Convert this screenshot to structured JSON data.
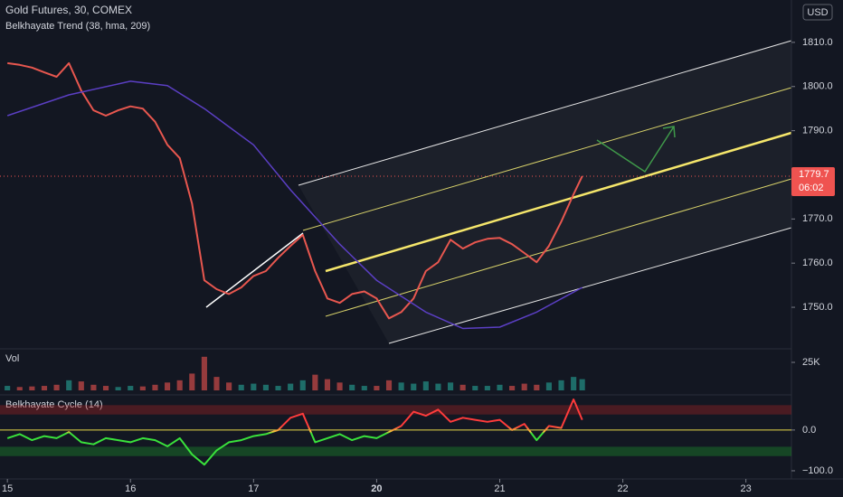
{
  "chart_data": {
    "type": "line",
    "title": "Gold Futures, 30, COMEX",
    "subtitle": "Belkhayate Trend (38, hma, 209)",
    "currency": "USD",
    "x": [
      0,
      0.1,
      0.2,
      0.3,
      0.4,
      0.5,
      0.6,
      0.7,
      0.8,
      0.9,
      1.0,
      1.1,
      1.2,
      1.3,
      1.4,
      1.5,
      1.6,
      1.7,
      1.8,
      1.9,
      2.0,
      2.1,
      2.2,
      2.3,
      2.4,
      2.5,
      2.6,
      2.7,
      2.8,
      2.9,
      3.0,
      3.1,
      3.2,
      3.3,
      3.4,
      3.5,
      3.6,
      3.7,
      3.8,
      3.9,
      4.0,
      4.1,
      4.2,
      4.3,
      4.4,
      4.5,
      4.6,
      4.67
    ],
    "xlim": [
      -0.06,
      6.37
    ],
    "xticks": [
      {
        "value": 0,
        "label": "15"
      },
      {
        "value": 1,
        "label": "16"
      },
      {
        "value": 2,
        "label": "17"
      },
      {
        "value": 3,
        "label": "20"
      },
      {
        "value": 4,
        "label": "21"
      },
      {
        "value": 5,
        "label": "22"
      },
      {
        "value": 6,
        "label": "23"
      }
    ],
    "series": [
      {
        "name": "Gold Futures",
        "color": "#e8574f",
        "values": [
          1805.3,
          1804.9,
          1804.3,
          1803.2,
          1802.2,
          1805.3,
          1799.1,
          1794.6,
          1793.4,
          1794.6,
          1795.5,
          1795.0,
          1792.0,
          1786.8,
          1783.8,
          1773.5,
          1756.1,
          1754.1,
          1753.0,
          1754.5,
          1757.1,
          1758.2,
          1761.2,
          1763.9,
          1766.4,
          1758.2,
          1752.0,
          1751.0,
          1753.0,
          1753.6,
          1752.0,
          1747.5,
          1748.9,
          1752.0,
          1758.2,
          1760.2,
          1765.3,
          1763.3,
          1764.7,
          1765.5,
          1765.7,
          1764.3,
          1762.3,
          1760.2,
          1763.9,
          1769.4,
          1775.6,
          1779.7
        ]
      },
      {
        "name": "Belkhayate Trend",
        "color": "#5b3fc4",
        "x": [
          0,
          0.5,
          1.0,
          1.3,
          1.6,
          2.0,
          2.3,
          2.7,
          3.0,
          3.4,
          3.7,
          4.0,
          4.3,
          4.67
        ],
        "values": [
          1793.4,
          1798.1,
          1801.2,
          1800.2,
          1795.0,
          1786.8,
          1776.6,
          1764.3,
          1756.1,
          1748.9,
          1745.2,
          1745.5,
          1748.9,
          1754.5
        ]
      }
    ],
    "ylim": [
      1740.8,
      1819.6
    ],
    "yticks": [
      {
        "value": 1750,
        "label": "1750.0"
      },
      {
        "value": 1760,
        "label": "1760.0"
      },
      {
        "value": 1770,
        "label": "1770.0"
      },
      {
        "value": 1780,
        "label": "1780.0"
      },
      {
        "value": 1790,
        "label": "1790.0"
      },
      {
        "value": 1800,
        "label": "1800.0"
      },
      {
        "value": 1810,
        "label": "1810.0"
      }
    ],
    "last_price": 1779.7,
    "countdown": "06:02",
    "volume": {
      "name": "Vol",
      "up_color": "#26a69a",
      "down_color": "#ef5350",
      "values": [
        4000,
        3000,
        3500,
        4000,
        5000,
        9000,
        8000,
        5000,
        4000,
        3000,
        4000,
        3500,
        5000,
        7000,
        9000,
        15000,
        30000,
        12000,
        7000,
        5000,
        6000,
        5000,
        4000,
        6000,
        9000,
        14000,
        10000,
        7000,
        5000,
        4000,
        4000,
        9000,
        7000,
        6000,
        8000,
        6000,
        7000,
        5000,
        4000,
        4000,
        5000,
        4000,
        6000,
        5000,
        7000,
        9000,
        12000,
        10000
      ],
      "ylim": [
        0,
        35500
      ],
      "yticks": [
        {
          "value": 25000,
          "label": "25K"
        }
      ]
    },
    "cycle": {
      "name": "Belkhayate Cycle  (14)",
      "values": [
        -20,
        -10,
        -25,
        -15,
        -20,
        -5,
        -30,
        -35,
        -20,
        -25,
        -30,
        -20,
        -25,
        -40,
        -20,
        -60,
        -85,
        -50,
        -30,
        -25,
        -15,
        -10,
        0,
        30,
        40,
        -30,
        -20,
        -10,
        -25,
        -15,
        -20,
        -5,
        10,
        45,
        35,
        50,
        20,
        30,
        25,
        20,
        25,
        0,
        15,
        -25,
        10,
        5,
        75,
        25
      ],
      "ylim": [
        -120,
        79.5
      ],
      "yticks": [
        {
          "value": 0,
          "label": "0.0"
        },
        {
          "value": -100,
          "label": "−100.0"
        }
      ],
      "upper_band": [
        38,
        61
      ],
      "lower_band": [
        -64,
        -41
      ]
    }
  }
}
